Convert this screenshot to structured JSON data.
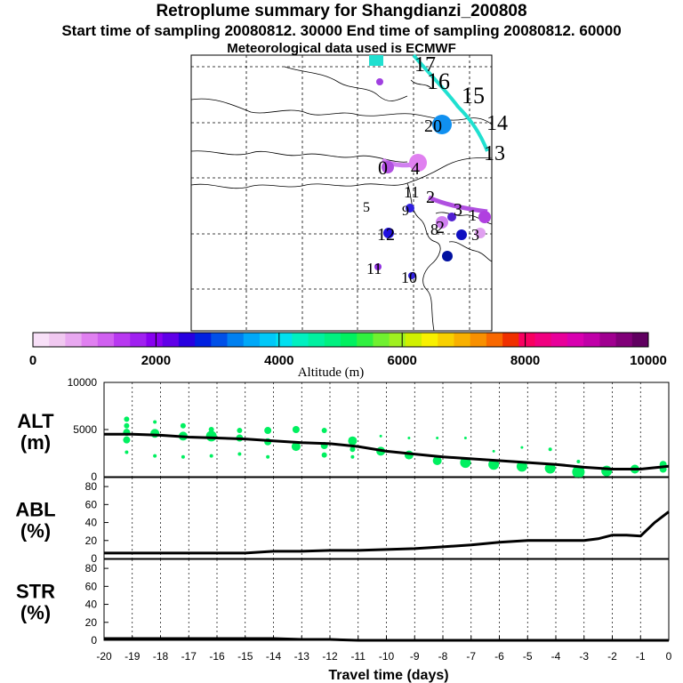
{
  "header": {
    "title": "Retroplume summary for Shangdianzi_200808",
    "subtitle": "Start time of sampling 20080812. 30000     End time of sampling 20080812. 60000",
    "met": "Meteorological data used is ECMWF"
  },
  "colorbar": {
    "label": "Altitude (m)",
    "tick_labels": [
      "0",
      "2000",
      "4000",
      "6000",
      "8000",
      "10000"
    ],
    "colors": [
      "#f8e0f8",
      "#f0c8f0",
      "#e8a8f0",
      "#e080f0",
      "#d060f0",
      "#b838f0",
      "#a020f0",
      "#8800f0",
      "#6000e8",
      "#2800e0",
      "#0020e0",
      "#0050e8",
      "#0080f0",
      "#00a8f8",
      "#00c8f8",
      "#00e0f0",
      "#00f0c0",
      "#00f0a0",
      "#00f080",
      "#00f060",
      "#30f040",
      "#70f030",
      "#a0f020",
      "#d0f000",
      "#f8f000",
      "#f8d000",
      "#f8b000",
      "#f89000",
      "#f86800",
      "#f03000",
      "#f80060",
      "#f00080",
      "#e8009a",
      "#d800b0",
      "#c000a8",
      "#a00090",
      "#800078",
      "#600060"
    ]
  },
  "map": {
    "labels": [
      "17",
      "16",
      "15",
      "14",
      "13",
      "20",
      "0",
      "4",
      "11",
      "5",
      "9",
      "2",
      "3",
      "12",
      "8",
      "11",
      "10",
      "2",
      "1",
      "3"
    ]
  },
  "chart_data": [
    {
      "type": "scatter",
      "name": "ALT",
      "ylabel_line1": "ALT",
      "ylabel_line2": "(m)",
      "ylim": [
        0,
        10000
      ],
      "yticks": [
        "10000",
        "5000",
        "0"
      ],
      "xlim": [
        -20,
        0
      ],
      "line": {
        "x": [
          -20,
          -19,
          -18,
          -17,
          -16,
          -15,
          -14,
          -13,
          -12,
          -11,
          -10,
          -9,
          -8,
          -7,
          -6,
          -5,
          -4,
          -3,
          -2,
          -1,
          0
        ],
        "y": [
          4500,
          4500,
          4400,
          4200,
          4100,
          4000,
          3800,
          3600,
          3500,
          3200,
          2700,
          2400,
          2100,
          1900,
          1700,
          1500,
          1300,
          1000,
          800,
          800,
          1100
        ]
      },
      "points": [
        {
          "x": -19.2,
          "y": 6100,
          "s": 3
        },
        {
          "x": -19.2,
          "y": 5400,
          "s": 3
        },
        {
          "x": -19.2,
          "y": 4700,
          "s": 4
        },
        {
          "x": -19.2,
          "y": 3900,
          "s": 4
        },
        {
          "x": -19.2,
          "y": 2600,
          "s": 2
        },
        {
          "x": -18.2,
          "y": 5800,
          "s": 2
        },
        {
          "x": -18.2,
          "y": 4600,
          "s": 5
        },
        {
          "x": -18.2,
          "y": 2200,
          "s": 2
        },
        {
          "x": -17.2,
          "y": 5400,
          "s": 3
        },
        {
          "x": -17.2,
          "y": 4300,
          "s": 5
        },
        {
          "x": -17.2,
          "y": 2100,
          "s": 2
        },
        {
          "x": -16.2,
          "y": 5000,
          "s": 3
        },
        {
          "x": -16.2,
          "y": 4300,
          "s": 6
        },
        {
          "x": -16.2,
          "y": 2200,
          "s": 2
        },
        {
          "x": -15.2,
          "y": 4900,
          "s": 3
        },
        {
          "x": -15.2,
          "y": 4100,
          "s": 4
        },
        {
          "x": -15.2,
          "y": 2400,
          "s": 2
        },
        {
          "x": -14.2,
          "y": 4900,
          "s": 4
        },
        {
          "x": -14.2,
          "y": 3700,
          "s": 4
        },
        {
          "x": -14.2,
          "y": 2100,
          "s": 2
        },
        {
          "x": -13.2,
          "y": 5000,
          "s": 4
        },
        {
          "x": -13.2,
          "y": 3200,
          "s": 5
        },
        {
          "x": -12.2,
          "y": 4900,
          "s": 3
        },
        {
          "x": -12.2,
          "y": 3300,
          "s": 4
        },
        {
          "x": -12.2,
          "y": 2300,
          "s": 3
        },
        {
          "x": -11.2,
          "y": 3800,
          "s": 5
        },
        {
          "x": -11.2,
          "y": 2900,
          "s": 3
        },
        {
          "x": -11.2,
          "y": 2100,
          "s": 2
        },
        {
          "x": -10.2,
          "y": 4300,
          "s": 1.5
        },
        {
          "x": -10.2,
          "y": 2700,
          "s": 5
        },
        {
          "x": -9.2,
          "y": 4100,
          "s": 1.5
        },
        {
          "x": -9.2,
          "y": 2300,
          "s": 5
        },
        {
          "x": -8.2,
          "y": 4100,
          "s": 1.5
        },
        {
          "x": -8.2,
          "y": 1700,
          "s": 5
        },
        {
          "x": -7.2,
          "y": 4100,
          "s": 1.5
        },
        {
          "x": -7.2,
          "y": 1500,
          "s": 6
        },
        {
          "x": -6.2,
          "y": 2700,
          "s": 1.5
        },
        {
          "x": -6.2,
          "y": 1300,
          "s": 6
        },
        {
          "x": -5.2,
          "y": 3100,
          "s": 1.5
        },
        {
          "x": -5.2,
          "y": 1100,
          "s": 6
        },
        {
          "x": -4.2,
          "y": 2900,
          "s": 2
        },
        {
          "x": -4.2,
          "y": 900,
          "s": 6
        },
        {
          "x": -3.2,
          "y": 1600,
          "s": 2
        },
        {
          "x": -3.2,
          "y": 500,
          "s": 7
        },
        {
          "x": -2.2,
          "y": 600,
          "s": 6
        },
        {
          "x": -1.2,
          "y": 800,
          "s": 5
        },
        {
          "x": -0.2,
          "y": 1300,
          "s": 4
        },
        {
          "x": -0.2,
          "y": 800,
          "s": 4
        }
      ]
    },
    {
      "type": "line",
      "name": "ABL",
      "ylabel_line1": "ABL",
      "ylabel_line2": "(%)",
      "ylim": [
        0,
        90
      ],
      "yticks": [
        "80",
        "60",
        "40",
        "20",
        "0"
      ],
      "xlim": [
        -20,
        0
      ],
      "x": [
        -20,
        -19,
        -18,
        -17,
        -16,
        -15,
        -14,
        -13,
        -12,
        -11,
        -10,
        -9,
        -8,
        -7,
        -6,
        -5,
        -4,
        -3,
        -2.5,
        -2,
        -1.5,
        -1,
        -0.5,
        0
      ],
      "y": [
        6,
        6,
        6,
        6,
        6,
        6,
        8,
        8,
        9,
        9,
        10,
        11,
        13,
        15,
        18,
        20,
        20,
        20,
        22,
        26,
        26,
        25,
        40,
        52
      ]
    },
    {
      "type": "line",
      "name": "STR",
      "ylabel_line1": "STR",
      "ylabel_line2": "(%)",
      "ylim": [
        0,
        90
      ],
      "yticks": [
        "80",
        "60",
        "40",
        "20",
        "0"
      ],
      "xlim": [
        -20,
        0
      ],
      "x": [
        -20,
        -19,
        -18,
        -17,
        -16,
        -15,
        -14,
        -13,
        -12,
        -11,
        -10,
        -9,
        -8,
        -7,
        -6,
        -5,
        -4,
        -3,
        -2,
        -1,
        0
      ],
      "y": [
        2,
        2,
        2,
        2,
        2,
        2,
        2,
        1,
        1,
        0,
        0,
        0,
        0,
        0,
        0,
        0,
        0,
        0,
        0,
        0,
        0
      ]
    }
  ],
  "xaxis": {
    "label": "Travel time (days)",
    "tick_labels": [
      "-20",
      "-19",
      "-18",
      "-17",
      "-16",
      "-15",
      "-14",
      "-13",
      "-12",
      "-11",
      "-10",
      "-9",
      "-8",
      "-7",
      "-6",
      "-5",
      "-4",
      "-3",
      "-2",
      "-1",
      "0"
    ]
  }
}
